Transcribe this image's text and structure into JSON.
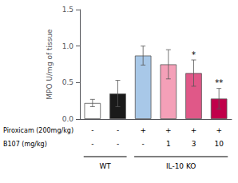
{
  "chart_data": {
    "type": "bar",
    "categories": [
      null,
      null,
      null,
      null,
      null,
      null
    ],
    "values": [
      0.22,
      0.35,
      0.87,
      0.75,
      0.63,
      0.28
    ],
    "errors": [
      0.05,
      0.18,
      0.13,
      0.2,
      0.18,
      0.14
    ],
    "colors": [
      "#ffffff",
      "#1a1a1a",
      "#a8c8e8",
      "#f4a0b8",
      "#e05888",
      "#c0004a"
    ],
    "significance": [
      null,
      null,
      null,
      null,
      "*",
      "**"
    ],
    "ylabel": "MPO U/mg of tissue",
    "ylim": [
      0,
      1.5
    ],
    "yticks": [
      {
        "value": 0,
        "label": "0.0"
      },
      0.5,
      {
        "value": 1,
        "label": "1.0"
      },
      1.5
    ],
    "grid": false,
    "table": [
      {
        "label": "Piroxicam (200mg/kg)",
        "values": [
          "-",
          "-",
          "+",
          "+",
          "+",
          "+"
        ]
      },
      {
        "label": "B107 (mg/kg)",
        "values": [
          "-",
          "-",
          "-",
          "1",
          "3",
          "10"
        ]
      }
    ],
    "groups": [
      {
        "label": "WT",
        "count": 2
      },
      {
        "label": "IL-10 KO",
        "count": 4
      }
    ]
  }
}
